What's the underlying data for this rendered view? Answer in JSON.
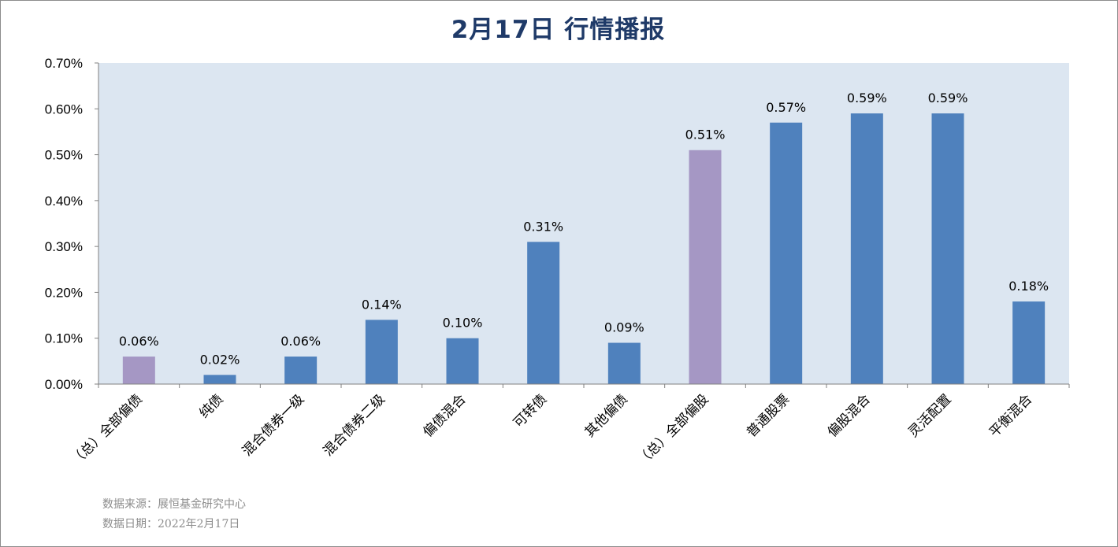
{
  "title": "2月17日  行情播报",
  "footer": {
    "source": "数据来源：展恒基金研究中心",
    "date": "数据日期：2022年2月17日"
  },
  "colors": {
    "plot_background": "#dce6f1",
    "bar_blue": "#4f81bd",
    "bar_purple": "#a597c4",
    "title": "#1f3a68"
  },
  "chart_data": {
    "type": "bar",
    "title": "2月17日  行情播报",
    "categories": [
      "（总）全部偏债",
      "纯债",
      "混合债券一级",
      "混合债券二级",
      "偏债混合",
      "可转债",
      "其他偏债",
      "（总）全部偏股",
      "普通股票",
      "偏股混合",
      "灵活配置",
      "平衡混合"
    ],
    "values": [
      0.06,
      0.02,
      0.06,
      0.14,
      0.1,
      0.31,
      0.09,
      0.51,
      0.57,
      0.59,
      0.59,
      0.18
    ],
    "value_labels": [
      "0.06%",
      "0.02%",
      "0.06%",
      "0.14%",
      "0.10%",
      "0.31%",
      "0.09%",
      "0.51%",
      "0.57%",
      "0.59%",
      "0.59%",
      "0.18%"
    ],
    "highlight": [
      true,
      false,
      false,
      false,
      false,
      false,
      false,
      true,
      false,
      false,
      false,
      false
    ],
    "unit": "%",
    "ylim": [
      0,
      0.7
    ],
    "yticks": [
      "0.00%",
      "0.10%",
      "0.20%",
      "0.30%",
      "0.40%",
      "0.50%",
      "0.60%",
      "0.70%"
    ],
    "grid": false,
    "legend": "none"
  }
}
